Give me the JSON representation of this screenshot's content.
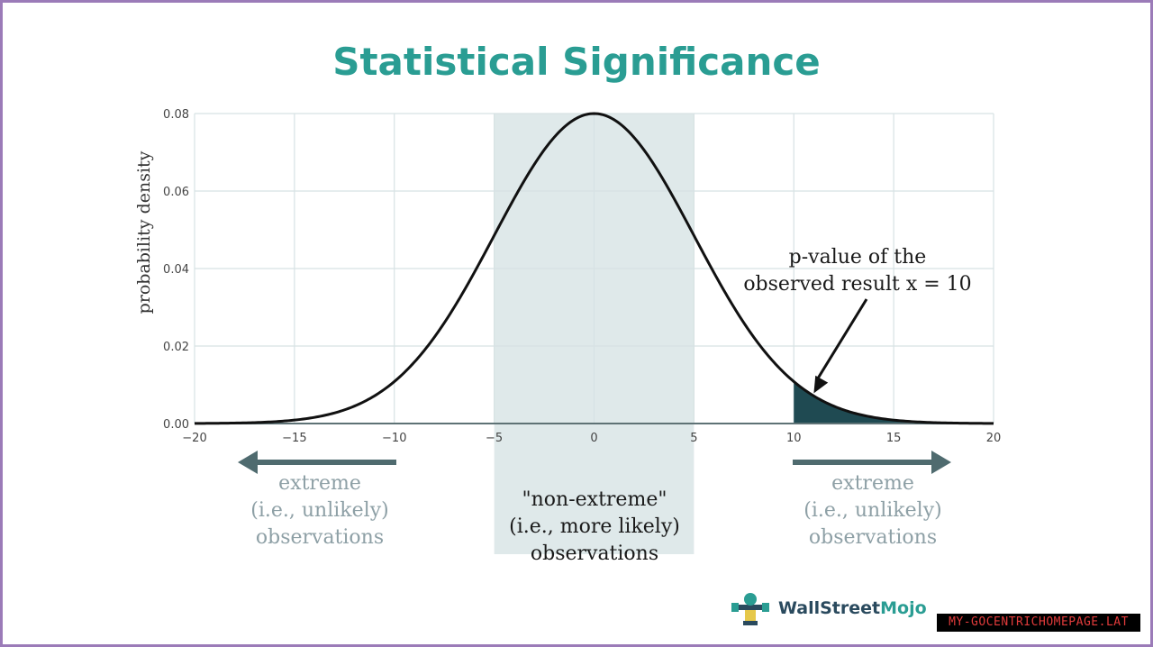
{
  "title": "Statistical Significance",
  "chart_data": {
    "type": "area",
    "title": "Statistical Significance",
    "xlabel": "",
    "ylabel": "probability density",
    "xlim": [
      -20,
      20
    ],
    "ylim": [
      0,
      0.08
    ],
    "x_ticks": [
      -20,
      -15,
      -10,
      -5,
      0,
      5,
      10,
      15,
      20
    ],
    "x_tick_labels": [
      "−20",
      "−15",
      "−10",
      "−5",
      "0",
      "5",
      "10",
      "15",
      "20"
    ],
    "y_ticks": [
      0,
      0.02,
      0.04,
      0.06,
      0.08
    ],
    "y_tick_labels": [
      "0.00",
      "0.02",
      "0.04",
      "0.06",
      "0.08"
    ],
    "grid": true,
    "distribution": {
      "kind": "normal",
      "mean": 0,
      "sd": 5,
      "peak_density": 0.08
    },
    "series": [
      {
        "x": [
          -20,
          -15,
          -10,
          -5,
          0,
          5,
          10,
          15,
          20
        ],
        "values": [
          0.0001,
          0.0009,
          0.0108,
          0.0484,
          0.0798,
          0.0484,
          0.0108,
          0.0009,
          0.0001
        ]
      }
    ],
    "shaded_band": {
      "x_from": -5,
      "x_to": 5
    },
    "shaded_tail": {
      "x_from": 10,
      "x_to": 20
    },
    "annotations": {
      "p_value": {
        "line1": "p-value of the",
        "line2": "observed result x = 10",
        "points_to_x": 11
      }
    }
  },
  "region_labels": {
    "left": {
      "line1": "extreme",
      "line2": "(i.e., unlikely)",
      "line3": "observations"
    },
    "center": {
      "line1": "\"non-extreme\"",
      "line2": "(i.e., more likely)",
      "line3": "observations"
    },
    "right": {
      "line1": "extreme",
      "line2": "(i.e., unlikely)",
      "line3": "observations"
    }
  },
  "logo": {
    "text_main": "WallStreet",
    "text_accent": "Mojo"
  },
  "watermark": "MY-GOCENTRICHOMEPAGE.LAT",
  "colors": {
    "title": "#2a9d93",
    "curve": "#111111",
    "band": "#dfe9ea",
    "tail": "#1f4a52",
    "grid": "#d7e2e4",
    "arrow_region": "#4f6b6f"
  }
}
